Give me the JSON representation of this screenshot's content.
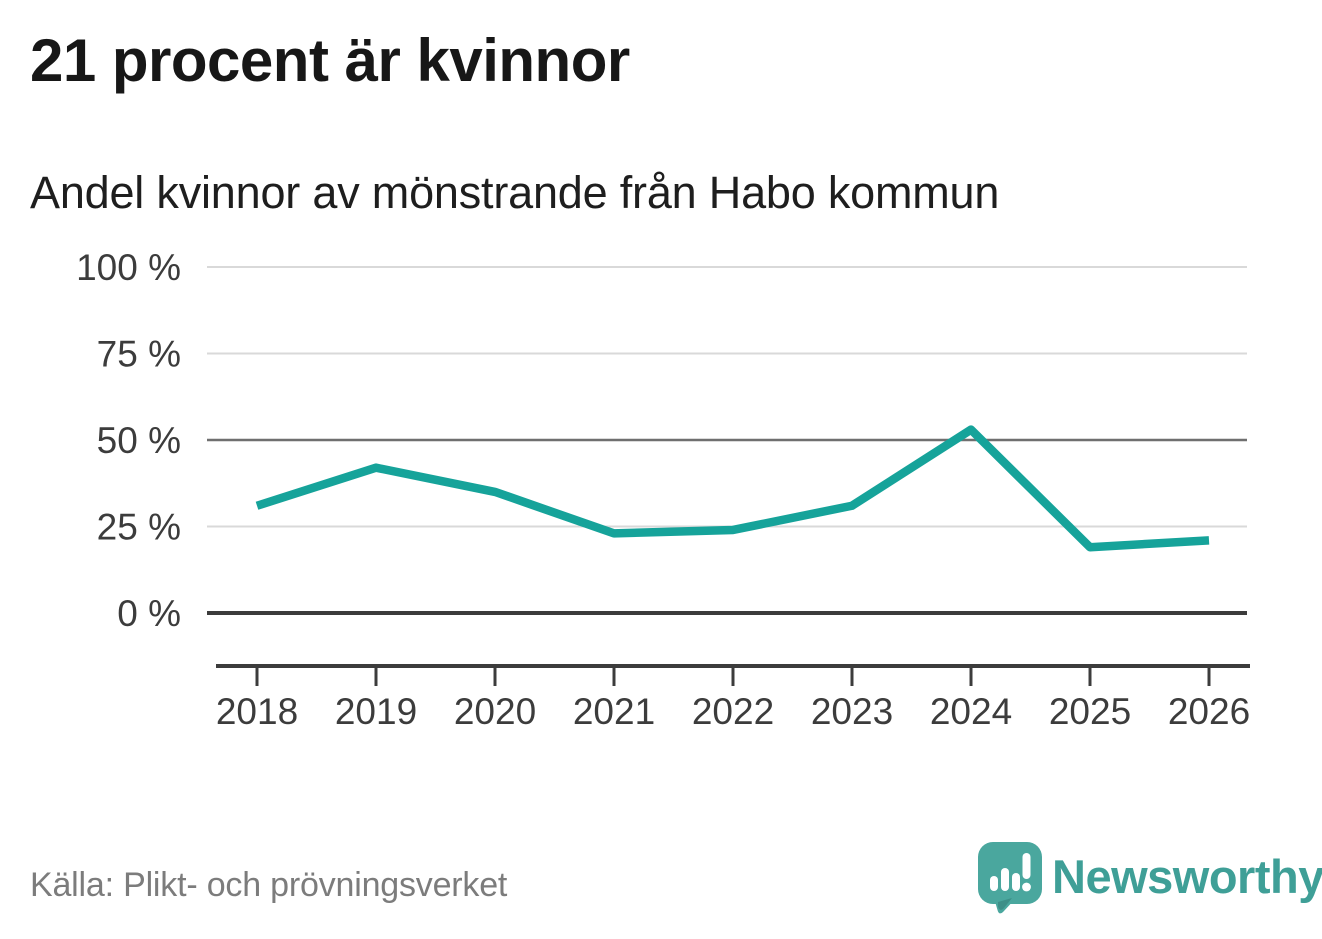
{
  "header": {
    "title": "21 procent är kvinnor",
    "subtitle": "Andel kvinnor av mönstrande från Habo kommun"
  },
  "footer": {
    "source": "Källa: Plikt- och prövningsverket",
    "brand": "Newsworthy",
    "logo_icon": "newsworthy-speech-bubble-bar-chart-icon"
  },
  "colors": {
    "line": "#16a39a",
    "grid_light": "#d9d9d9",
    "grid_mid": "#6f6f6f",
    "grid_zero": "#3c3c3c",
    "axis": "#3c3c3c",
    "tick_text": "#3c3c3c",
    "title_text": "#171717",
    "muted_text": "#7c7c7c",
    "logo_fill": "#4aa79e",
    "wordmark": "#3f9f97"
  },
  "chart_data": {
    "type": "line",
    "title": "21 procent är kvinnor",
    "subtitle": "Andel kvinnor av mönstrande från Habo kommun",
    "x": [
      2018,
      2019,
      2020,
      2021,
      2022,
      2023,
      2024,
      2025,
      2026
    ],
    "series": [
      {
        "name": "Andel kvinnor av mönstrande",
        "color": "#16a39a",
        "values": [
          31,
          42,
          35,
          23,
          24,
          31,
          53,
          19,
          21
        ]
      }
    ],
    "xlabel": "",
    "ylabel": "",
    "ylim": [
      0,
      100
    ],
    "yticks": [
      0,
      25,
      50,
      75,
      100
    ],
    "ytick_labels": [
      "0 %",
      "25 %",
      "50 %",
      "75 %",
      "100 %"
    ],
    "grid": "horizontal",
    "emphasized_gridlines": [
      50
    ],
    "zero_line": true,
    "legend": "none",
    "unit": "%"
  }
}
